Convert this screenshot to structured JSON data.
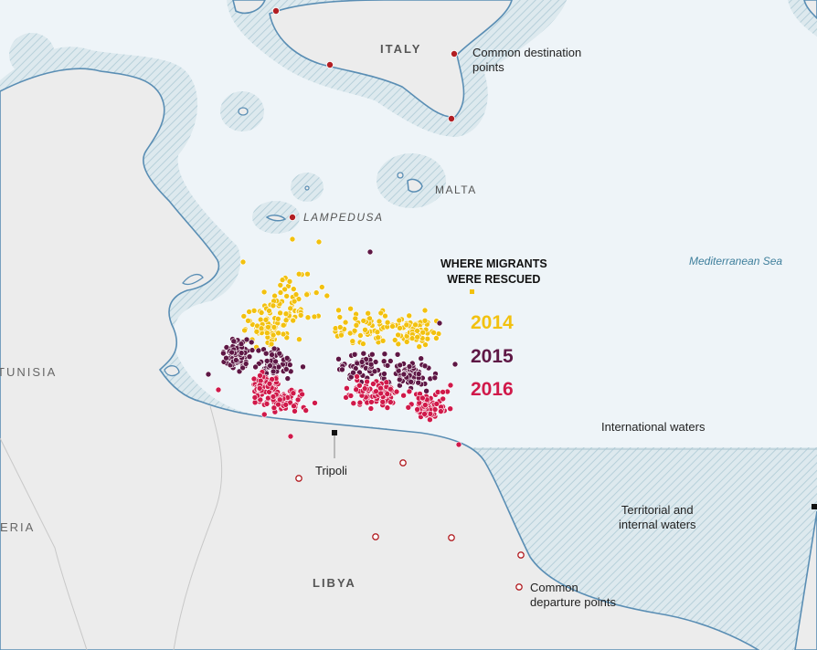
{
  "title": {
    "line1": "WHERE MIGRANTS",
    "line2": "WERE RESCUED"
  },
  "legend": [
    {
      "year": "2014",
      "color": "#f2c10f"
    },
    {
      "year": "2015",
      "color": "#5e1745"
    },
    {
      "year": "2016",
      "color": "#d0194a"
    }
  ],
  "colors": {
    "sea": "#eef4f8",
    "land": "#ececec",
    "coast": "#5a8eb4",
    "territorial_hatch": "#c9dde5",
    "city_marker": "#b21e23"
  },
  "labels": {
    "italy": "ITALY",
    "malta": "MALTA",
    "lampedusa": "LAMPEDUSA",
    "tunisia": "TUNISIA",
    "algeria": "ERIA",
    "libya": "LIBYA",
    "mediterranean": "Mediterranean Sea",
    "tripoli": "Tripoli",
    "destination_line1": "Common destination",
    "destination_line2": "points",
    "departure_line1": "Common",
    "departure_line2": "departure points",
    "international": "International waters",
    "territorial_line1": "Territorial and",
    "territorial_line2": "internal waters"
  },
  "icons": {
    "destination": "filled-red-dot-icon",
    "departure": "hollow-red-circle-icon",
    "city": "black-square-icon"
  }
}
